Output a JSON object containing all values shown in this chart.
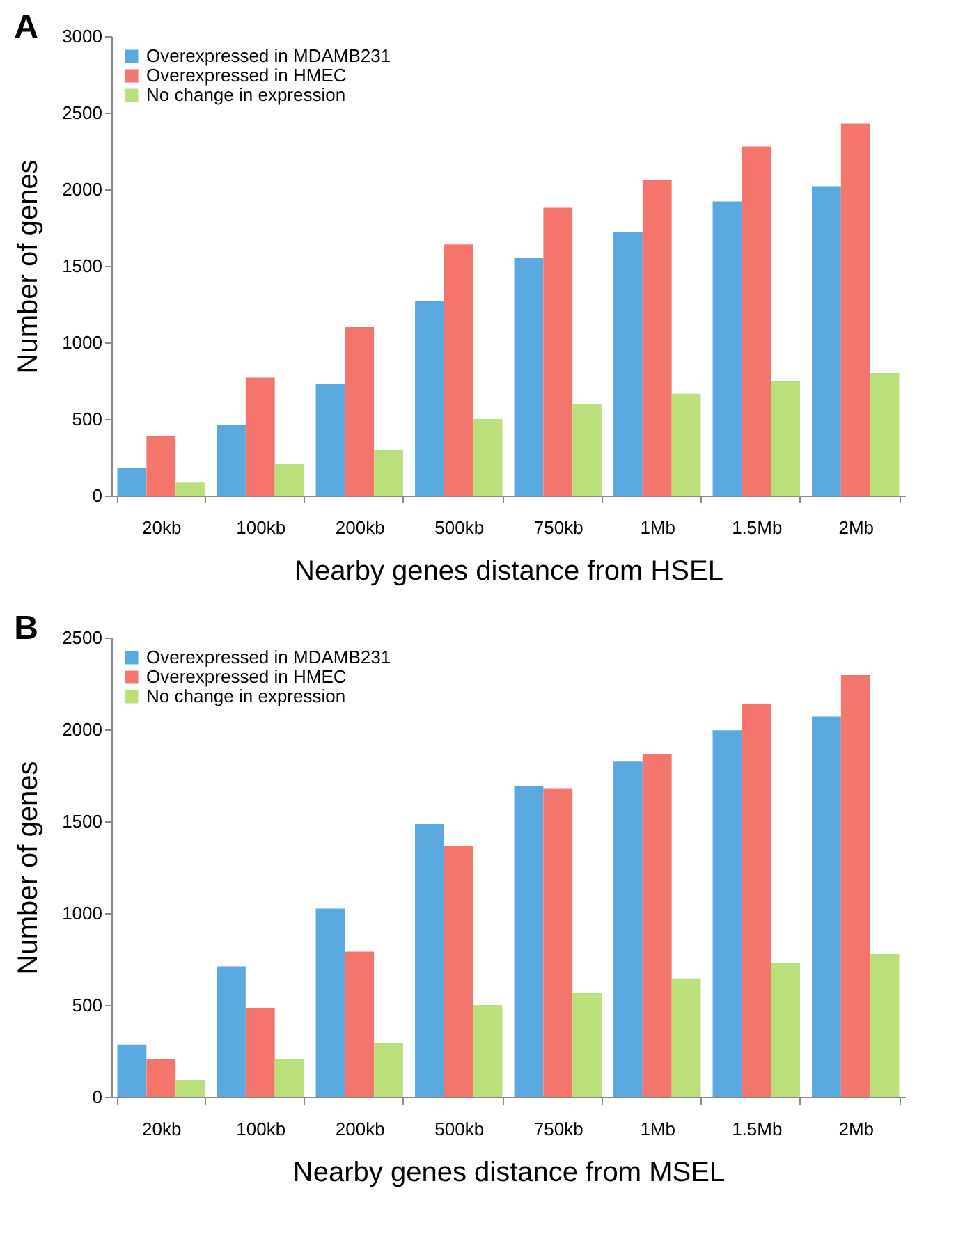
{
  "chart_data": [
    {
      "type": "bar",
      "title": "A",
      "xlabel": "Nearby genes distance from HSEL",
      "ylabel": "Number of genes",
      "categories": [
        "20kb",
        "100kb",
        "200kb",
        "500kb",
        "750kb",
        "1Mb",
        "1.5Mb",
        "2Mb"
      ],
      "series": [
        {
          "name": "Overexpressed in MDAMB231",
          "color": "#5aa8e0",
          "values": [
            180,
            460,
            730,
            1270,
            1550,
            1720,
            1920,
            2020
          ]
        },
        {
          "name": "Overexpressed in HMEC",
          "color": "#f4756c",
          "values": [
            390,
            770,
            1100,
            1640,
            1880,
            2060,
            2280,
            2430
          ]
        },
        {
          "name": "No change in expression",
          "color": "#b9e07a",
          "values": [
            85,
            205,
            300,
            500,
            600,
            665,
            745,
            800
          ]
        }
      ],
      "ylim": [
        0,
        3000
      ],
      "yticks": [
        0,
        500,
        1000,
        1500,
        2000,
        2500,
        3000
      ],
      "grid": false,
      "legend": "top left"
    },
    {
      "type": "bar",
      "title": "B",
      "xlabel": "Nearby genes distance from MSEL",
      "ylabel": "Number of genes",
      "categories": [
        "20kb",
        "100kb",
        "200kb",
        "500kb",
        "750kb",
        "1Mb",
        "1.5Mb",
        "2Mb"
      ],
      "series": [
        {
          "name": "Overexpressed in MDAMB231",
          "color": "#5aa8e0",
          "values": [
            285,
            710,
            1025,
            1485,
            1690,
            1825,
            1995,
            2070
          ]
        },
        {
          "name": "Overexpressed in HMEC",
          "color": "#f4756c",
          "values": [
            205,
            485,
            790,
            1365,
            1680,
            1865,
            2140,
            2295
          ]
        },
        {
          "name": "No change in expression",
          "color": "#b9e07a",
          "values": [
            95,
            205,
            295,
            500,
            565,
            645,
            730,
            780
          ]
        }
      ],
      "ylim": [
        0,
        2500
      ],
      "yticks": [
        0,
        500,
        1000,
        1500,
        2000,
        2500
      ],
      "grid": false,
      "legend": "top left"
    }
  ]
}
